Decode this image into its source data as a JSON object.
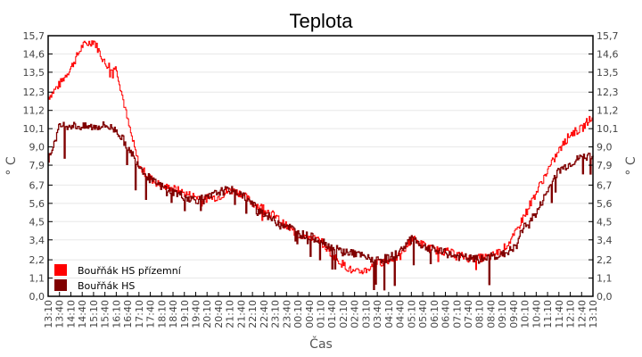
{
  "chart_data": {
    "type": "line",
    "title": "Teplota",
    "xlabel": "Čas",
    "ylabel": "° C",
    "ylim": [
      0.0,
      15.7
    ],
    "y_ticks": [
      "0,0",
      "1,1",
      "2,2",
      "3,4",
      "4,5",
      "5,6",
      "6,7",
      "7,9",
      "9,0",
      "10,1",
      "11,2",
      "12,3",
      "13,5",
      "14,6",
      "15,7"
    ],
    "y_tick_values": [
      0.0,
      1.1,
      2.2,
      3.4,
      4.5,
      5.6,
      6.7,
      7.9,
      9.0,
      10.1,
      11.2,
      12.3,
      13.5,
      14.6,
      15.7
    ],
    "grid": true,
    "legend_position": "lower-left inside",
    "categories": [
      "13:10",
      "13:40",
      "14:10",
      "14:40",
      "15:10",
      "15:40",
      "16:10",
      "16:40",
      "17:10",
      "17:40",
      "18:10",
      "18:40",
      "19:10",
      "19:40",
      "20:10",
      "20:40",
      "21:10",
      "21:40",
      "22:10",
      "22:40",
      "23:10",
      "23:40",
      "00:10",
      "00:40",
      "01:10",
      "01:40",
      "02:10",
      "02:40",
      "03:10",
      "03:40",
      "04:10",
      "04:40",
      "05:10",
      "05:40",
      "06:10",
      "06:40",
      "07:10",
      "07:40",
      "08:10",
      "08:40",
      "09:10",
      "09:40",
      "10:10",
      "10:40",
      "11:10",
      "11:40",
      "12:10",
      "12:40",
      "13:10"
    ],
    "series": [
      {
        "name": "Bouřňák HS přízemní",
        "color": "#ff0000",
        "values": [
          12.0,
          12.8,
          13.8,
          15.1,
          15.4,
          14.0,
          13.7,
          10.5,
          7.8,
          7.1,
          6.6,
          6.5,
          6.2,
          6.0,
          5.9,
          6.0,
          6.4,
          6.2,
          5.6,
          5.3,
          4.8,
          4.2,
          3.7,
          3.6,
          3.3,
          2.5,
          1.9,
          1.4,
          1.6,
          2.0,
          2.2,
          2.4,
          3.5,
          3.1,
          2.8,
          2.7,
          2.5,
          2.3,
          2.3,
          2.4,
          2.8,
          3.6,
          5.0,
          6.3,
          7.6,
          8.8,
          9.8,
          10.1,
          11.0
        ]
      },
      {
        "name": "Bouřňák HS",
        "color": "#800000",
        "values": [
          8.2,
          10.3,
          10.3,
          10.2,
          10.2,
          10.3,
          10.0,
          9.0,
          7.9,
          7.0,
          6.6,
          6.3,
          6.0,
          5.8,
          5.9,
          6.3,
          6.4,
          6.2,
          5.5,
          5.0,
          4.5,
          4.3,
          3.8,
          3.6,
          3.4,
          2.9,
          2.7,
          2.6,
          2.3,
          2.2,
          2.3,
          2.7,
          3.6,
          3.0,
          2.8,
          2.6,
          2.4,
          2.3,
          2.2,
          2.4,
          2.5,
          2.9,
          4.3,
          5.0,
          6.4,
          7.6,
          8.0,
          8.4,
          8.5
        ]
      }
    ]
  },
  "legend": {
    "items": [
      {
        "label": "Bouřňák HS přízemní",
        "color": "#ff0000"
      },
      {
        "label": "Bouřňák HS",
        "color": "#800000"
      }
    ]
  }
}
